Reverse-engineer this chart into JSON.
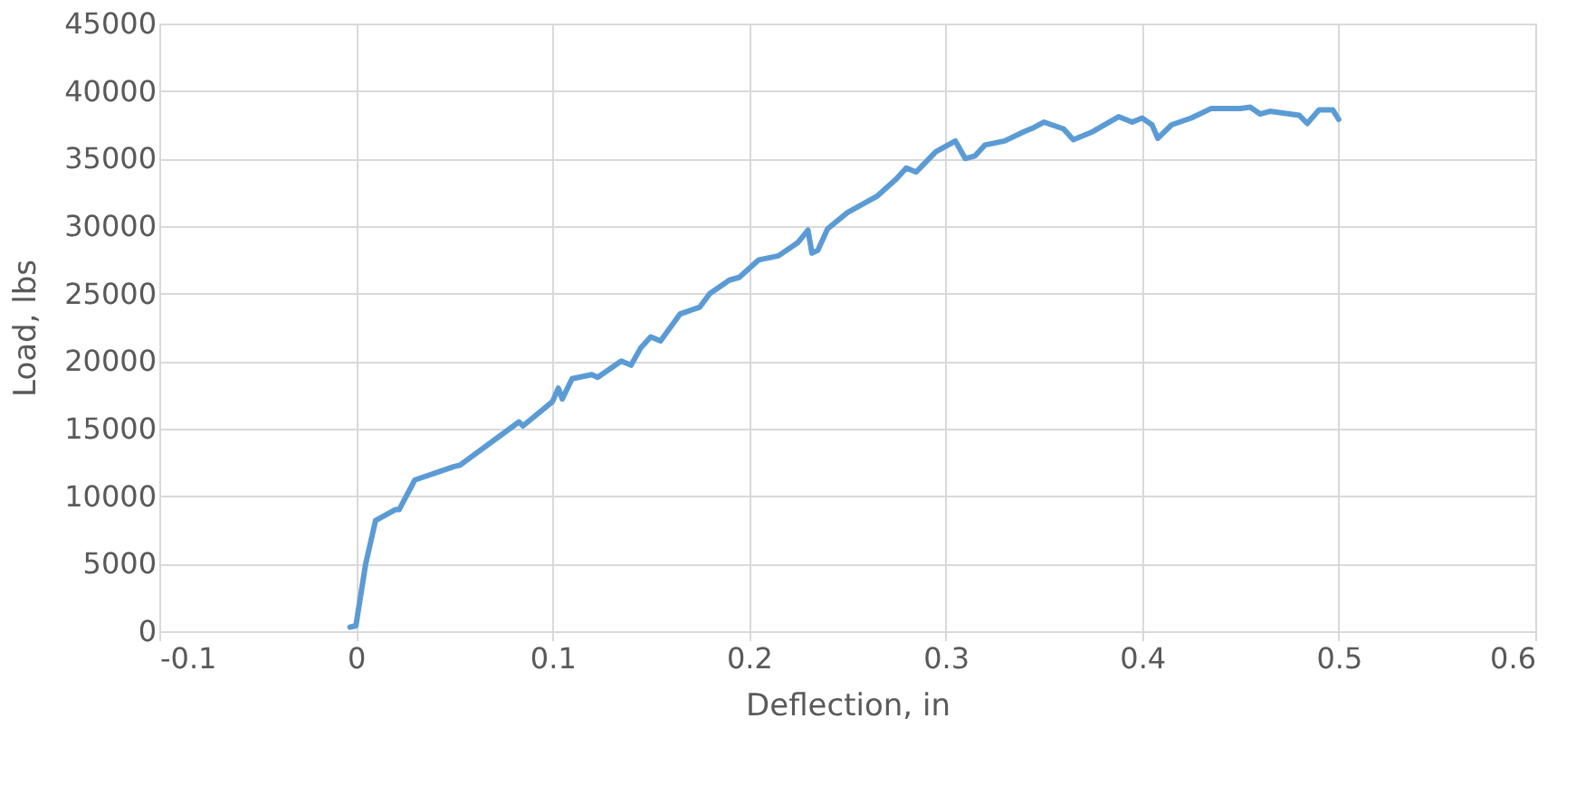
{
  "chart_data": {
    "type": "line",
    "xlabel": "Deflection, in",
    "ylabel": "Load, lbs",
    "x": [
      -0.003,
      0.0,
      0.005,
      0.01,
      0.02,
      0.022,
      0.03,
      0.05,
      0.053,
      0.083,
      0.085,
      0.1,
      0.103,
      0.105,
      0.11,
      0.12,
      0.123,
      0.135,
      0.14,
      0.145,
      0.15,
      0.155,
      0.165,
      0.175,
      0.18,
      0.19,
      0.195,
      0.205,
      0.215,
      0.225,
      0.23,
      0.232,
      0.235,
      0.24,
      0.25,
      0.26,
      0.265,
      0.275,
      0.28,
      0.285,
      0.295,
      0.305,
      0.31,
      0.315,
      0.32,
      0.33,
      0.34,
      0.345,
      0.35,
      0.36,
      0.365,
      0.375,
      0.388,
      0.395,
      0.4,
      0.405,
      0.408,
      0.415,
      0.425,
      0.435,
      0.45,
      0.455,
      0.46,
      0.465,
      0.48,
      0.484,
      0.49,
      0.497,
      0.5
    ],
    "series": [
      {
        "color": "#5b9bd5",
        "values": [
          300,
          400,
          5000,
          8200,
          9000,
          9000,
          11200,
          12200,
          12300,
          15500,
          15200,
          17000,
          18000,
          17200,
          18700,
          19000,
          18800,
          20000,
          19700,
          21000,
          21800,
          21500,
          23500,
          24000,
          25000,
          26000,
          26200,
          27500,
          27800,
          28800,
          29700,
          28000,
          28200,
          29800,
          31000,
          31800,
          32200,
          33500,
          34300,
          34000,
          35500,
          36300,
          35000,
          35200,
          36000,
          36300,
          37000,
          37300,
          37700,
          37200,
          36400,
          37000,
          38100,
          37700,
          38000,
          37500,
          36500,
          37500,
          38000,
          38700,
          38700,
          38800,
          38300,
          38500,
          38200,
          37600,
          38600,
          38600,
          37900
        ]
      }
    ],
    "xlim": [
      -0.1,
      0.6
    ],
    "xticks": [
      -0.1,
      0,
      0.1,
      0.2,
      0.3,
      0.4,
      0.5,
      0.6
    ],
    "ylim": [
      0,
      45000
    ],
    "yticks": [
      0,
      5000,
      10000,
      15000,
      20000,
      25000,
      30000,
      35000,
      40000,
      45000
    ],
    "grid": true,
    "marker": "none",
    "line_style": "solid"
  }
}
